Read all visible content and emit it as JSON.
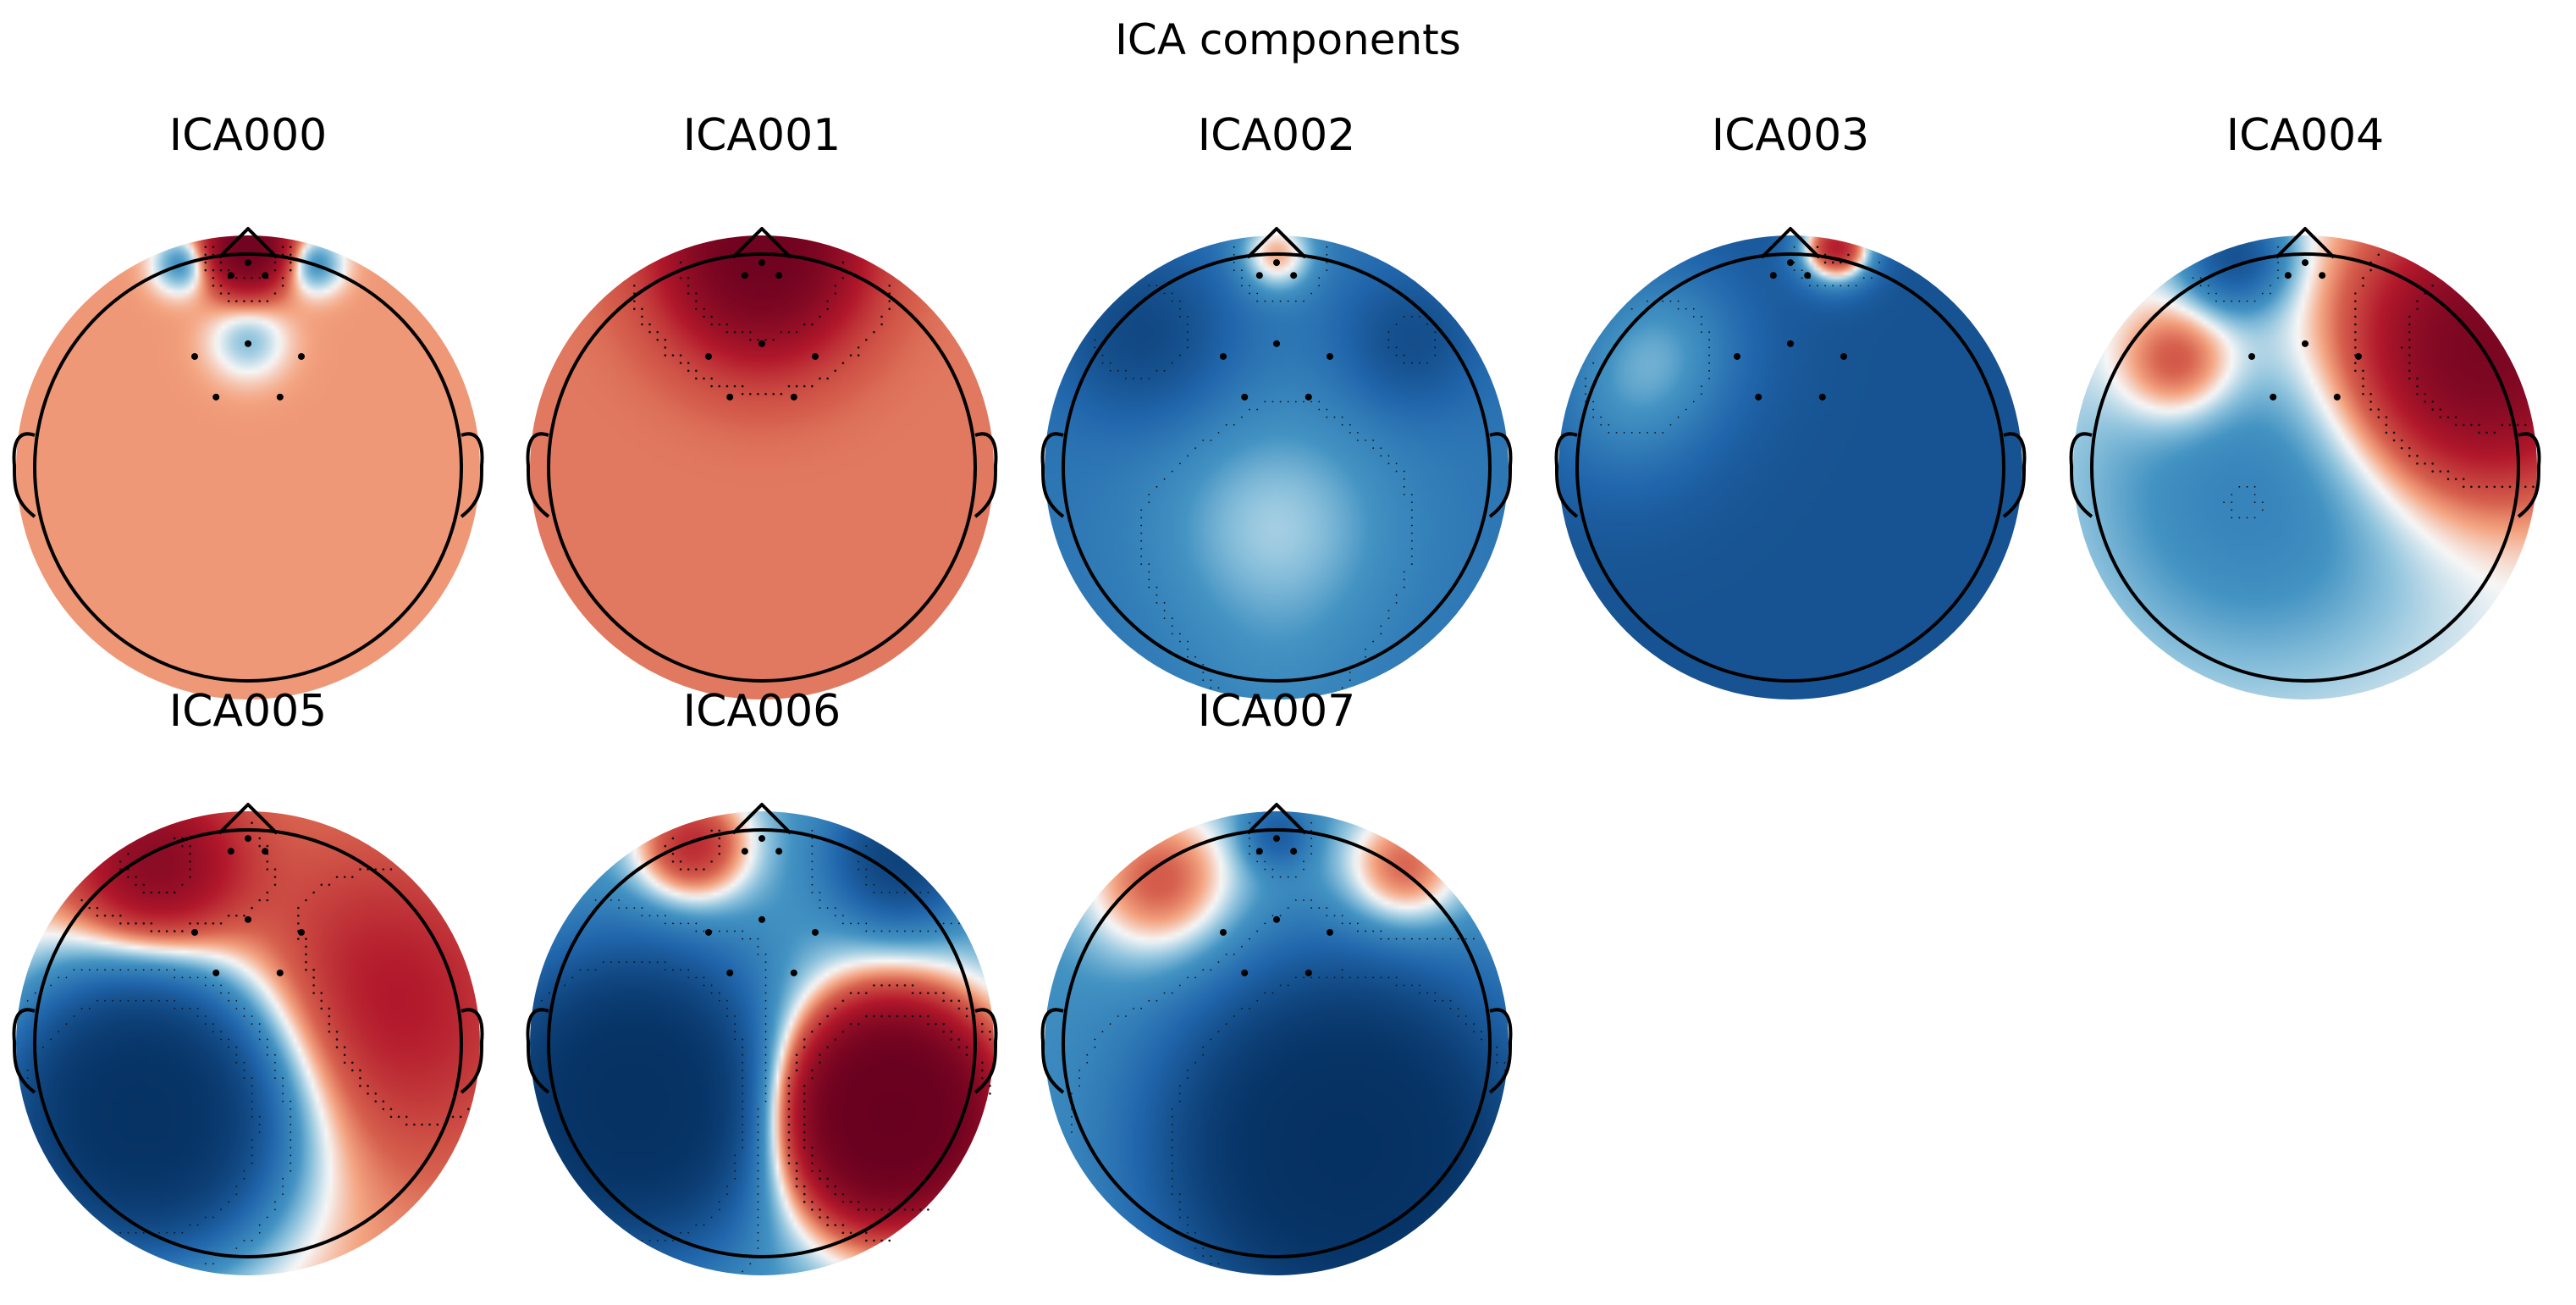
{
  "chart_data": {
    "type": "heatmap",
    "kind": "topographic-map-grid",
    "title": "ICA components",
    "colormap": "RdBu_r",
    "colors": {
      "positive": "#67001f",
      "negative": "#053061",
      "neutral": "#f7f7f7"
    },
    "grid": {
      "rows": 2,
      "cols": 5
    },
    "sensor_count": 8,
    "components": [
      {
        "name": "ICA000",
        "row": 0,
        "col": 0,
        "level": 0.18,
        "sources": [
          {
            "x": 0.0,
            "y": 0.95,
            "w": 1.6,
            "s": 0.13
          },
          {
            "x": -0.28,
            "y": 0.88,
            "w": -0.6,
            "s": 0.09
          },
          {
            "x": 0.28,
            "y": 0.88,
            "w": -0.6,
            "s": 0.09
          },
          {
            "x": 0.0,
            "y": 0.55,
            "w": -0.35,
            "s": 0.12
          }
        ]
      },
      {
        "name": "ICA001",
        "row": 0,
        "col": 1,
        "level": 0.25,
        "sources": [
          {
            "x": 0.0,
            "y": 0.98,
            "w": 1.4,
            "s": 0.28
          },
          {
            "x": 0.0,
            "y": 0.75,
            "w": 0.35,
            "s": 0.25
          }
        ]
      },
      {
        "name": "ICA002",
        "row": 0,
        "col": 2,
        "level": -0.55,
        "sources": [
          {
            "x": -0.58,
            "y": 0.58,
            "w": -0.6,
            "s": 0.25
          },
          {
            "x": 0.58,
            "y": 0.55,
            "w": -0.5,
            "s": 0.2
          },
          {
            "x": 0.0,
            "y": -0.25,
            "w": 0.42,
            "s": 0.38
          },
          {
            "x": 0.0,
            "y": 0.92,
            "w": 0.7,
            "s": 0.12
          },
          {
            "x": 0.0,
            "y": -1.0,
            "w": 0.1,
            "s": 0.3
          }
        ]
      },
      {
        "name": "ICA003",
        "row": 0,
        "col": 3,
        "level": -0.95,
        "sources": [
          {
            "x": -0.55,
            "y": 0.55,
            "w": 0.55,
            "s": 0.3
          },
          {
            "x": 0.2,
            "y": 0.95,
            "w": 1.6,
            "s": 0.12
          },
          {
            "x": -0.75,
            "y": 0.2,
            "w": 0.35,
            "s": 0.3
          }
        ]
      },
      {
        "name": "ICA004",
        "row": 0,
        "col": 4,
        "level": 0.0,
        "sources": [
          {
            "x": 0.75,
            "y": 0.5,
            "w": 1.5,
            "s": 0.4
          },
          {
            "x": -0.55,
            "y": 0.45,
            "w": 0.55,
            "s": 0.18
          },
          {
            "x": -0.2,
            "y": -0.1,
            "w": -0.45,
            "s": 0.55
          },
          {
            "x": -0.3,
            "y": 0.92,
            "w": -0.9,
            "s": 0.16
          }
        ]
      },
      {
        "name": "ICA005",
        "row": 1,
        "col": 0,
        "level": 0.2,
        "sources": [
          {
            "x": -0.45,
            "y": -0.3,
            "w": -2.6,
            "s": 0.42
          },
          {
            "x": -0.4,
            "y": 0.75,
            "w": 1.0,
            "s": 0.25
          },
          {
            "x": 0.55,
            "y": 0.15,
            "w": 0.55,
            "s": 0.45
          }
        ]
      },
      {
        "name": "ICA006",
        "row": 1,
        "col": 1,
        "level": -0.3,
        "sources": [
          {
            "x": -0.55,
            "y": -0.25,
            "w": -2.4,
            "s": 0.38
          },
          {
            "x": 0.55,
            "y": -0.3,
            "w": 3.2,
            "s": 0.32
          },
          {
            "x": -0.3,
            "y": 0.85,
            "w": 0.9,
            "s": 0.18
          },
          {
            "x": 0.6,
            "y": 0.8,
            "w": -1.0,
            "s": 0.2
          }
        ]
      },
      {
        "name": "ICA007",
        "row": 1,
        "col": 2,
        "level": -0.35,
        "sources": [
          {
            "x": 0.3,
            "y": -0.45,
            "w": -2.6,
            "s": 0.45
          },
          {
            "x": -0.5,
            "y": 0.7,
            "w": 0.7,
            "s": 0.25
          },
          {
            "x": 0.55,
            "y": 0.75,
            "w": 0.7,
            "s": 0.2
          },
          {
            "x": 0.0,
            "y": 0.9,
            "w": -0.5,
            "s": 0.1
          }
        ]
      }
    ]
  }
}
